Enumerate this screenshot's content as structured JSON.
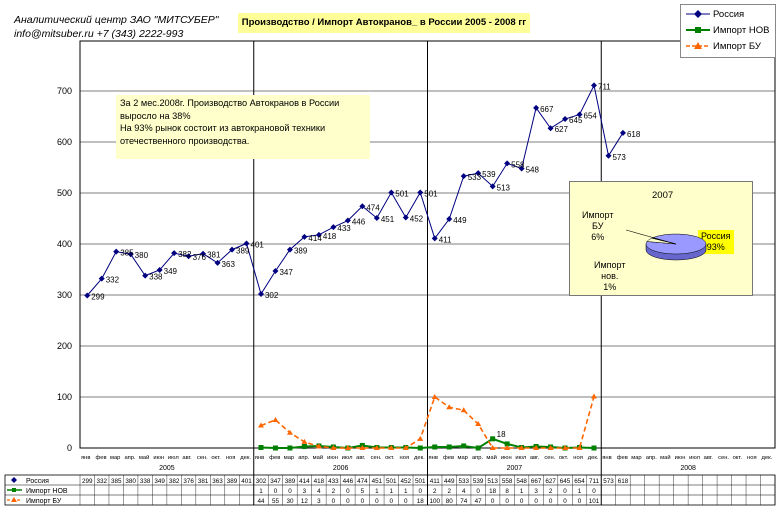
{
  "header": {
    "company": "Аналитический центр ЗАО \"МИТСУБЕР\"",
    "contact": "info@mitsuber.ru +7 (343) 2222-993"
  },
  "note": {
    "lines": [
      "За 2 мес.2008г. Производство Автокранов в России",
      "выросло на 38%",
      "На 93% рынок состоит из автокрановой техники",
      "отечественного производства."
    ]
  },
  "inset": {
    "year": "2007",
    "bu_label_1": "Импорт",
    "bu_label_2": "БУ",
    "bu_pct": "6%",
    "nov_label_1": "Импорт",
    "nov_label_2": "нов.",
    "nov_pct": "1%",
    "rus_label": "Россия",
    "rus_pct": "93%",
    "shares": [
      93,
      6,
      1
    ],
    "colors": [
      "#9999ff",
      "#ffffcc",
      "#008000"
    ]
  },
  "chart_data": {
    "type": "line",
    "title": "Производство / Импорт Автокранов_ в России 2005 - 2008 гг",
    "ylim": [
      0,
      800
    ],
    "yticks": [
      0,
      100,
      200,
      300,
      400,
      500,
      600,
      700
    ],
    "grid": true,
    "legend": "top-right",
    "month_labels": [
      "янв",
      "фев",
      "мар",
      "апр.",
      "май",
      "июн",
      "июл",
      "авг.",
      "сен.",
      "окт.",
      "ноя",
      "дек."
    ],
    "years": [
      "2005",
      "2006",
      "2007",
      "2008"
    ],
    "series": [
      {
        "name": "Россия",
        "color": "#000080",
        "values": [
          299,
          332,
          385,
          380,
          338,
          349,
          382,
          376,
          381,
          363,
          389,
          401,
          302,
          347,
          389,
          414,
          418,
          433,
          446,
          474,
          451,
          501,
          452,
          501,
          411,
          449,
          533,
          539,
          513,
          558,
          548,
          667,
          627,
          645,
          654,
          711,
          573,
          618,
          null,
          null,
          null,
          null,
          null,
          null,
          null,
          null,
          null,
          null
        ]
      },
      {
        "name": "Импорт НОВ",
        "color": "#008000",
        "values": [
          null,
          null,
          null,
          null,
          null,
          null,
          null,
          null,
          null,
          null,
          null,
          null,
          1,
          0,
          0,
          3,
          4,
          2,
          0,
          5,
          1,
          1,
          1,
          0,
          2,
          2,
          4,
          0,
          18,
          8,
          1,
          3,
          2,
          0,
          1,
          0,
          null,
          null,
          null,
          null,
          null,
          null,
          null,
          null,
          null,
          null,
          null,
          null
        ]
      },
      {
        "name": "Импорт БУ",
        "color": "#ff6600",
        "values": [
          null,
          null,
          null,
          null,
          null,
          null,
          null,
          null,
          null,
          null,
          null,
          null,
          44,
          55,
          30,
          12,
          3,
          0,
          0,
          0,
          0,
          0,
          0,
          18,
          100,
          80,
          74,
          47,
          0,
          0,
          0,
          0,
          0,
          0,
          0,
          101,
          null,
          null,
          null,
          null,
          null,
          null,
          null,
          null,
          null,
          null,
          null,
          null
        ]
      }
    ],
    "point_labels": {
      "Россия": [
        299,
        332,
        385,
        380,
        338,
        349,
        382,
        376,
        381,
        363,
        389,
        401,
        302,
        347,
        389,
        414,
        418,
        433,
        446,
        474,
        451,
        501,
        452,
        501,
        411,
        449,
        533,
        539,
        513,
        558,
        548,
        667,
        627,
        645,
        654,
        711,
        573,
        618
      ],
      "Импорт НОВ": {
        "28": 18
      }
    },
    "table_rows": [
      {
        "name": "Россия",
        "cells": [
          "299",
          "332",
          "385",
          "380",
          "338",
          "349",
          "382",
          "376",
          "381",
          "363",
          "389",
          "401",
          "302",
          "347",
          "389",
          "414",
          "418",
          "433",
          "446",
          "474",
          "451",
          "501",
          "452",
          "501",
          "411",
          "449",
          "533",
          "539",
          "513",
          "558",
          "548",
          "667",
          "627",
          "645",
          "654",
          "711",
          "573",
          "618",
          "",
          "",
          "",
          "",
          "",
          "",
          "",
          "",
          "",
          ""
        ]
      },
      {
        "name": "Импорт НОВ",
        "cells": [
          "",
          "",
          "",
          "",
          "",
          "",
          "",
          "",
          "",
          "",
          "",
          "",
          "1",
          "0",
          "0",
          "3",
          "4",
          "2",
          "0",
          "5",
          "1",
          "1",
          "1",
          "0",
          "2",
          "2",
          "4",
          "0",
          "18",
          "8",
          "1",
          "3",
          "2",
          "0",
          "1",
          "0",
          "",
          "",
          "",
          "",
          "",
          "",
          "",
          "",
          "",
          "",
          "",
          ""
        ]
      },
      {
        "name": "Импорт БУ",
        "cells": [
          "",
          "",
          "",
          "",
          "",
          "",
          "",
          "",
          "",
          "",
          "",
          "",
          "44",
          "55",
          "30",
          "12",
          "3",
          "0",
          "0",
          "0",
          "0",
          "0",
          "0",
          "18",
          "100",
          "80",
          "74",
          "47",
          "0",
          "0",
          "0",
          "0",
          "0",
          "0",
          "0",
          "101",
          "",
          "",
          "",
          "",
          "",
          "",
          "",
          "",
          "",
          "",
          "",
          ""
        ]
      }
    ]
  }
}
